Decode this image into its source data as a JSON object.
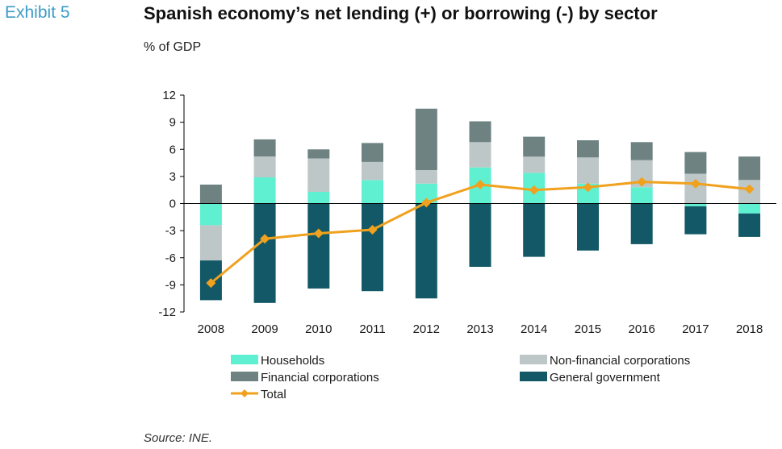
{
  "header": {
    "exhibit": "Exhibit 5",
    "title": "Spanish economy’s net lending (+) or borrowing (-) by sector",
    "subtitle": "% of GDP"
  },
  "footer": {
    "source": "Source: INE."
  },
  "colors": {
    "households": "#5ff0d2",
    "non_financial": "#bdc7c7",
    "financial": "#6e8282",
    "government": "#125866",
    "total": "#f0a11e",
    "axis": "#000000"
  },
  "chart_data": {
    "type": "bar",
    "stacked": true,
    "categories": [
      "2008",
      "2009",
      "2010",
      "2011",
      "2012",
      "2013",
      "2014",
      "2015",
      "2016",
      "2017",
      "2018"
    ],
    "ylim": [
      -12,
      12
    ],
    "yticks": [
      12,
      9,
      6,
      3,
      0,
      -3,
      -6,
      -9,
      -12
    ],
    "grid": false,
    "legend_position": "bottom",
    "series": [
      {
        "key": "households",
        "name": "Households",
        "kind": "bar",
        "values": [
          -2.4,
          2.9,
          1.3,
          2.6,
          2.2,
          4.0,
          3.4,
          2.2,
          1.8,
          -0.3,
          -1.1
        ]
      },
      {
        "key": "non_financial",
        "name": "Non-financial corporations",
        "kind": "bar",
        "values": [
          -3.9,
          2.3,
          3.7,
          2.0,
          1.5,
          2.8,
          1.8,
          2.9,
          3.0,
          3.3,
          2.6
        ]
      },
      {
        "key": "financial",
        "name": "Financial corporations",
        "kind": "bar",
        "values": [
          2.1,
          1.9,
          1.0,
          2.1,
          6.8,
          2.3,
          2.2,
          1.9,
          2.0,
          2.4,
          2.6
        ]
      },
      {
        "key": "government",
        "name": "General government",
        "kind": "bar",
        "values": [
          -4.4,
          -11.0,
          -9.4,
          -9.7,
          -10.5,
          -7.0,
          -5.9,
          -5.2,
          -4.5,
          -3.1,
          -2.6
        ]
      },
      {
        "key": "total",
        "name": "Total",
        "kind": "line",
        "values": [
          -8.8,
          -3.9,
          -3.3,
          -2.9,
          0.1,
          2.1,
          1.5,
          1.8,
          2.4,
          2.2,
          1.6
        ]
      }
    ]
  }
}
